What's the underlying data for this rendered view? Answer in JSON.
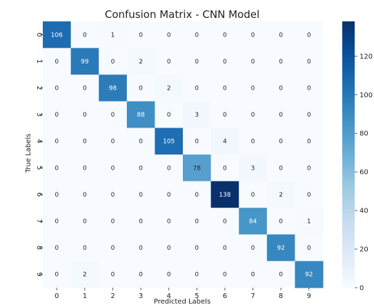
{
  "chart_data": {
    "type": "heatmap",
    "title": "Confusion Matrix - CNN Model",
    "xlabel": "Predicted Labels",
    "ylabel": "True Labels",
    "x_categories": [
      "0",
      "1",
      "2",
      "3",
      "4",
      "5",
      "6",
      "7",
      "8",
      "9"
    ],
    "y_categories": [
      "0",
      "1",
      "2",
      "3",
      "4",
      "5",
      "6",
      "7",
      "8",
      "9"
    ],
    "matrix": [
      [
        106,
        0,
        1,
        0,
        0,
        0,
        0,
        0,
        0,
        0
      ],
      [
        0,
        99,
        0,
        2,
        0,
        0,
        0,
        0,
        0,
        0
      ],
      [
        0,
        0,
        98,
        0,
        2,
        0,
        0,
        0,
        0,
        0
      ],
      [
        0,
        0,
        0,
        88,
        0,
        3,
        0,
        0,
        0,
        0
      ],
      [
        0,
        0,
        0,
        0,
        105,
        0,
        4,
        0,
        0,
        0
      ],
      [
        0,
        0,
        0,
        0,
        0,
        78,
        0,
        3,
        0,
        0
      ],
      [
        0,
        0,
        0,
        0,
        0,
        0,
        138,
        0,
        2,
        0
      ],
      [
        0,
        0,
        0,
        0,
        0,
        0,
        0,
        84,
        0,
        1
      ],
      [
        0,
        0,
        0,
        0,
        0,
        0,
        0,
        0,
        92,
        0
      ],
      [
        0,
        2,
        0,
        0,
        0,
        0,
        0,
        0,
        0,
        92
      ]
    ],
    "colorbar": {
      "min": 0,
      "max": 138,
      "ticks": [
        0,
        20,
        40,
        60,
        80,
        100,
        120
      ]
    },
    "colormap": "Blues",
    "colors": {
      "low": "#f7fbff",
      "high": "#08306b"
    },
    "grid": false
  }
}
